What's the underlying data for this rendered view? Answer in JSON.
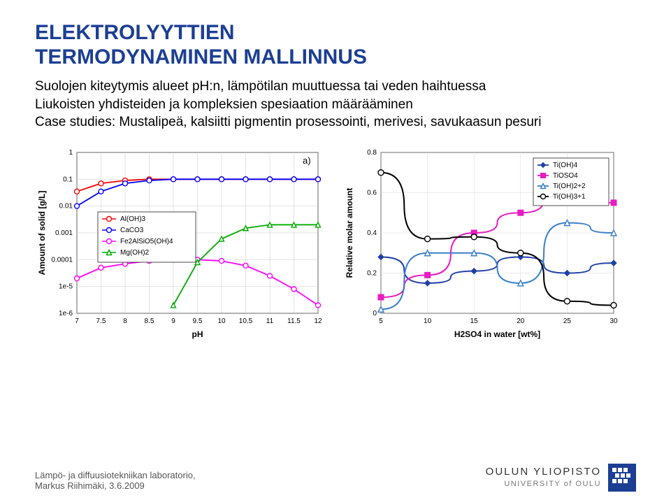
{
  "title": {
    "line1": "ELEKTROLYYTTIEN",
    "line2": "TERMODYNAMINEN MALLINNUS",
    "color": "#1c3f94",
    "fontsize": 30
  },
  "bullets": [
    "Suolojen kiteytymis alueet pH:n, lämpötilan muuttuessa tai veden haihtuessa",
    "Liukoisten yhdisteiden ja kompleksien spesiaation määrääminen",
    "Case studies: Mustalipeä, kalsiitti pigmentin prosessointi, merivesi, savukaasun pesuri"
  ],
  "chart1": {
    "type": "line-log",
    "panel_label": "a)",
    "xlabel": "pH",
    "ylabel": "Amount of solid [g/L]",
    "x_ticks": [
      7,
      7.5,
      8,
      8.5,
      9,
      9.5,
      10,
      10.5,
      11,
      11.5,
      12
    ],
    "y_ticks_log": [
      1e-06,
      1e-05,
      0.0001,
      0.001,
      0.01,
      0.1,
      1
    ],
    "y_tick_labels": [
      "1e-6",
      "1e-5",
      "0.0001",
      "0.001",
      "0.01",
      "0.1",
      "1"
    ],
    "plot_bg": "#ffffff",
    "grid_color": "#c8c8c8",
    "axis_color": "#000000",
    "label_fontsize": 12,
    "tick_fontsize": 10,
    "series": [
      {
        "name": "Al(OH)3",
        "color": "#ff0000",
        "marker": "circle",
        "x": [
          7,
          7.5,
          8,
          8.5,
          9,
          9.5,
          10,
          10.5,
          11,
          11.5,
          12
        ],
        "y": [
          0.035,
          0.07,
          0.09,
          0.1,
          0.1,
          0.1,
          0.1,
          0.1,
          0.1,
          0.1,
          0.1
        ]
      },
      {
        "name": "CaCO3",
        "color": "#0000ff",
        "marker": "circle",
        "x": [
          7,
          7.5,
          8,
          8.5,
          9,
          9.5,
          10,
          10.5,
          11,
          11.5,
          12
        ],
        "y": [
          0.01,
          0.035,
          0.07,
          0.09,
          0.1,
          0.1,
          0.1,
          0.1,
          0.1,
          0.1,
          0.1
        ]
      },
      {
        "name": "Fe2AlSiO5(OH)4",
        "color": "#ff00ff",
        "marker": "circle",
        "x": [
          7,
          7.5,
          8,
          8.5,
          9,
          9.5,
          10,
          10.5,
          11,
          11.5,
          12
        ],
        "y": [
          2e-05,
          5e-05,
          7e-05,
          9e-05,
          0.0001,
          0.0001,
          9e-05,
          6e-05,
          2.5e-05,
          8e-06,
          2e-06
        ]
      },
      {
        "name": "Mg(OH)2",
        "color": "#00aa00",
        "marker": "triangle",
        "x": [
          9,
          9.5,
          10,
          10.5,
          11,
          11.5,
          12
        ],
        "y": [
          2e-06,
          8e-05,
          0.0006,
          0.0015,
          0.002,
          0.002,
          0.002
        ]
      }
    ],
    "legend_bg": "#ffffff",
    "legend_border": "#000000"
  },
  "chart2": {
    "type": "line",
    "xlabel": "H2SO4 in water [wt%]",
    "ylabel": "Relative molar amount",
    "x_ticks": [
      5,
      10,
      15,
      20,
      25,
      30
    ],
    "y_ticks": [
      0,
      0.2,
      0.4,
      0.6,
      0.8
    ],
    "plot_bg": "#ffffff",
    "grid_color": "#d8d8d8",
    "axis_color": "#000000",
    "label_fontsize": 12,
    "tick_fontsize": 10,
    "series": [
      {
        "name": "Ti(OH)4",
        "color": "#1f3fa7",
        "marker": "diamond",
        "x": [
          5,
          10,
          15,
          20,
          25,
          30
        ],
        "y": [
          0.28,
          0.15,
          0.21,
          0.28,
          0.2,
          0.25
        ]
      },
      {
        "name": "TiOSO4",
        "color": "#e81cc3",
        "marker": "square",
        "x": [
          5,
          10,
          15,
          20,
          25,
          30
        ],
        "y": [
          0.08,
          0.19,
          0.4,
          0.5,
          0.63,
          0.55
        ]
      },
      {
        "name": "Ti(OH)2+2",
        "color": "#3a7fca",
        "marker": "triangle",
        "x": [
          5,
          10,
          15,
          20,
          25,
          30
        ],
        "y": [
          0.02,
          0.3,
          0.3,
          0.15,
          0.45,
          0.4
        ]
      },
      {
        "name": "Ti(OH)3+1",
        "color": "#000000",
        "marker": "circle",
        "x": [
          5,
          10,
          15,
          20,
          25,
          30
        ],
        "y": [
          0.7,
          0.37,
          0.38,
          0.3,
          0.06,
          0.04
        ]
      }
    ],
    "legend_bg": "#ffffff",
    "legend_border": "#000000"
  },
  "footer": {
    "lab_line1": "Lämpö- ja diffuusiotekniikan laboratorio,",
    "lab_line2": "Markus Riihimäki, 3.6.2009",
    "uni_line1": "OULUN YLIOPISTO",
    "uni_line2": "UNIVERSITY of OULU",
    "logo_color": "#1c3f94"
  }
}
